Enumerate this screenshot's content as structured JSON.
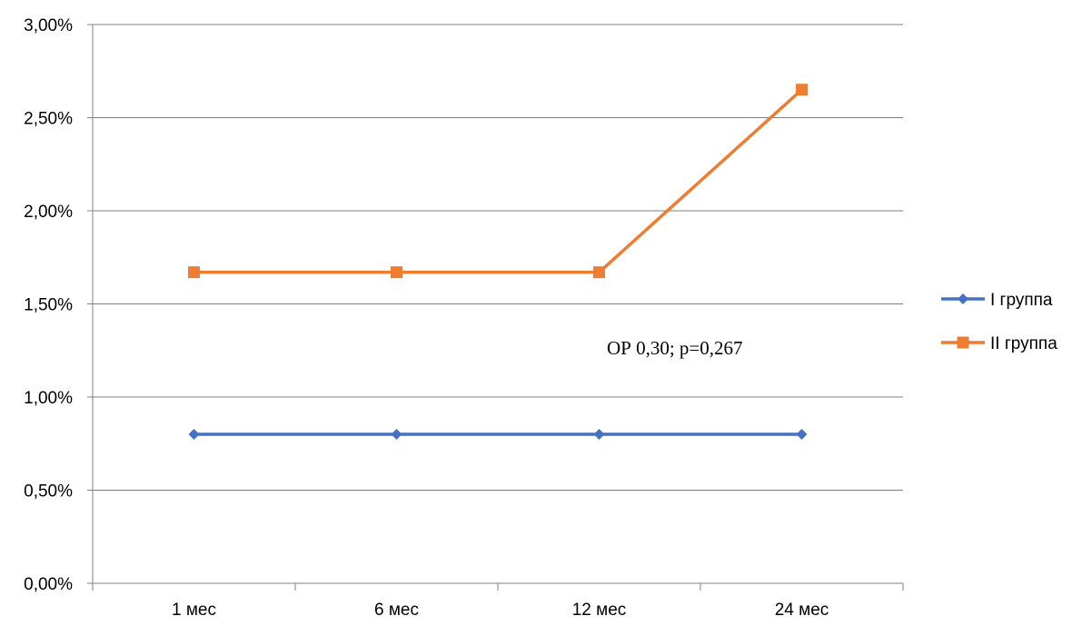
{
  "chart_data": {
    "type": "line",
    "categories": [
      "1 мес",
      "6 мес",
      "12 мес",
      "24 мес"
    ],
    "series": [
      {
        "name": "I группа",
        "values": [
          0.8,
          0.8,
          0.8,
          0.8
        ],
        "color": "#4472C4",
        "marker": "diamond"
      },
      {
        "name": "II группа",
        "values": [
          1.67,
          1.67,
          1.67,
          2.65
        ],
        "color": "#ED7D31",
        "marker": "square"
      }
    ],
    "ylim": [
      0,
      3
    ],
    "y_ticks": [
      "0,00%",
      "0,50%",
      "1,00%",
      "1,50%",
      "2,00%",
      "2,50%",
      "3,00%"
    ],
    "y_unit": "%",
    "grid": true,
    "legend_position": "right",
    "annotation": "ОР 0,30; p=0,267",
    "title": "",
    "xlabel": "",
    "ylabel": ""
  }
}
